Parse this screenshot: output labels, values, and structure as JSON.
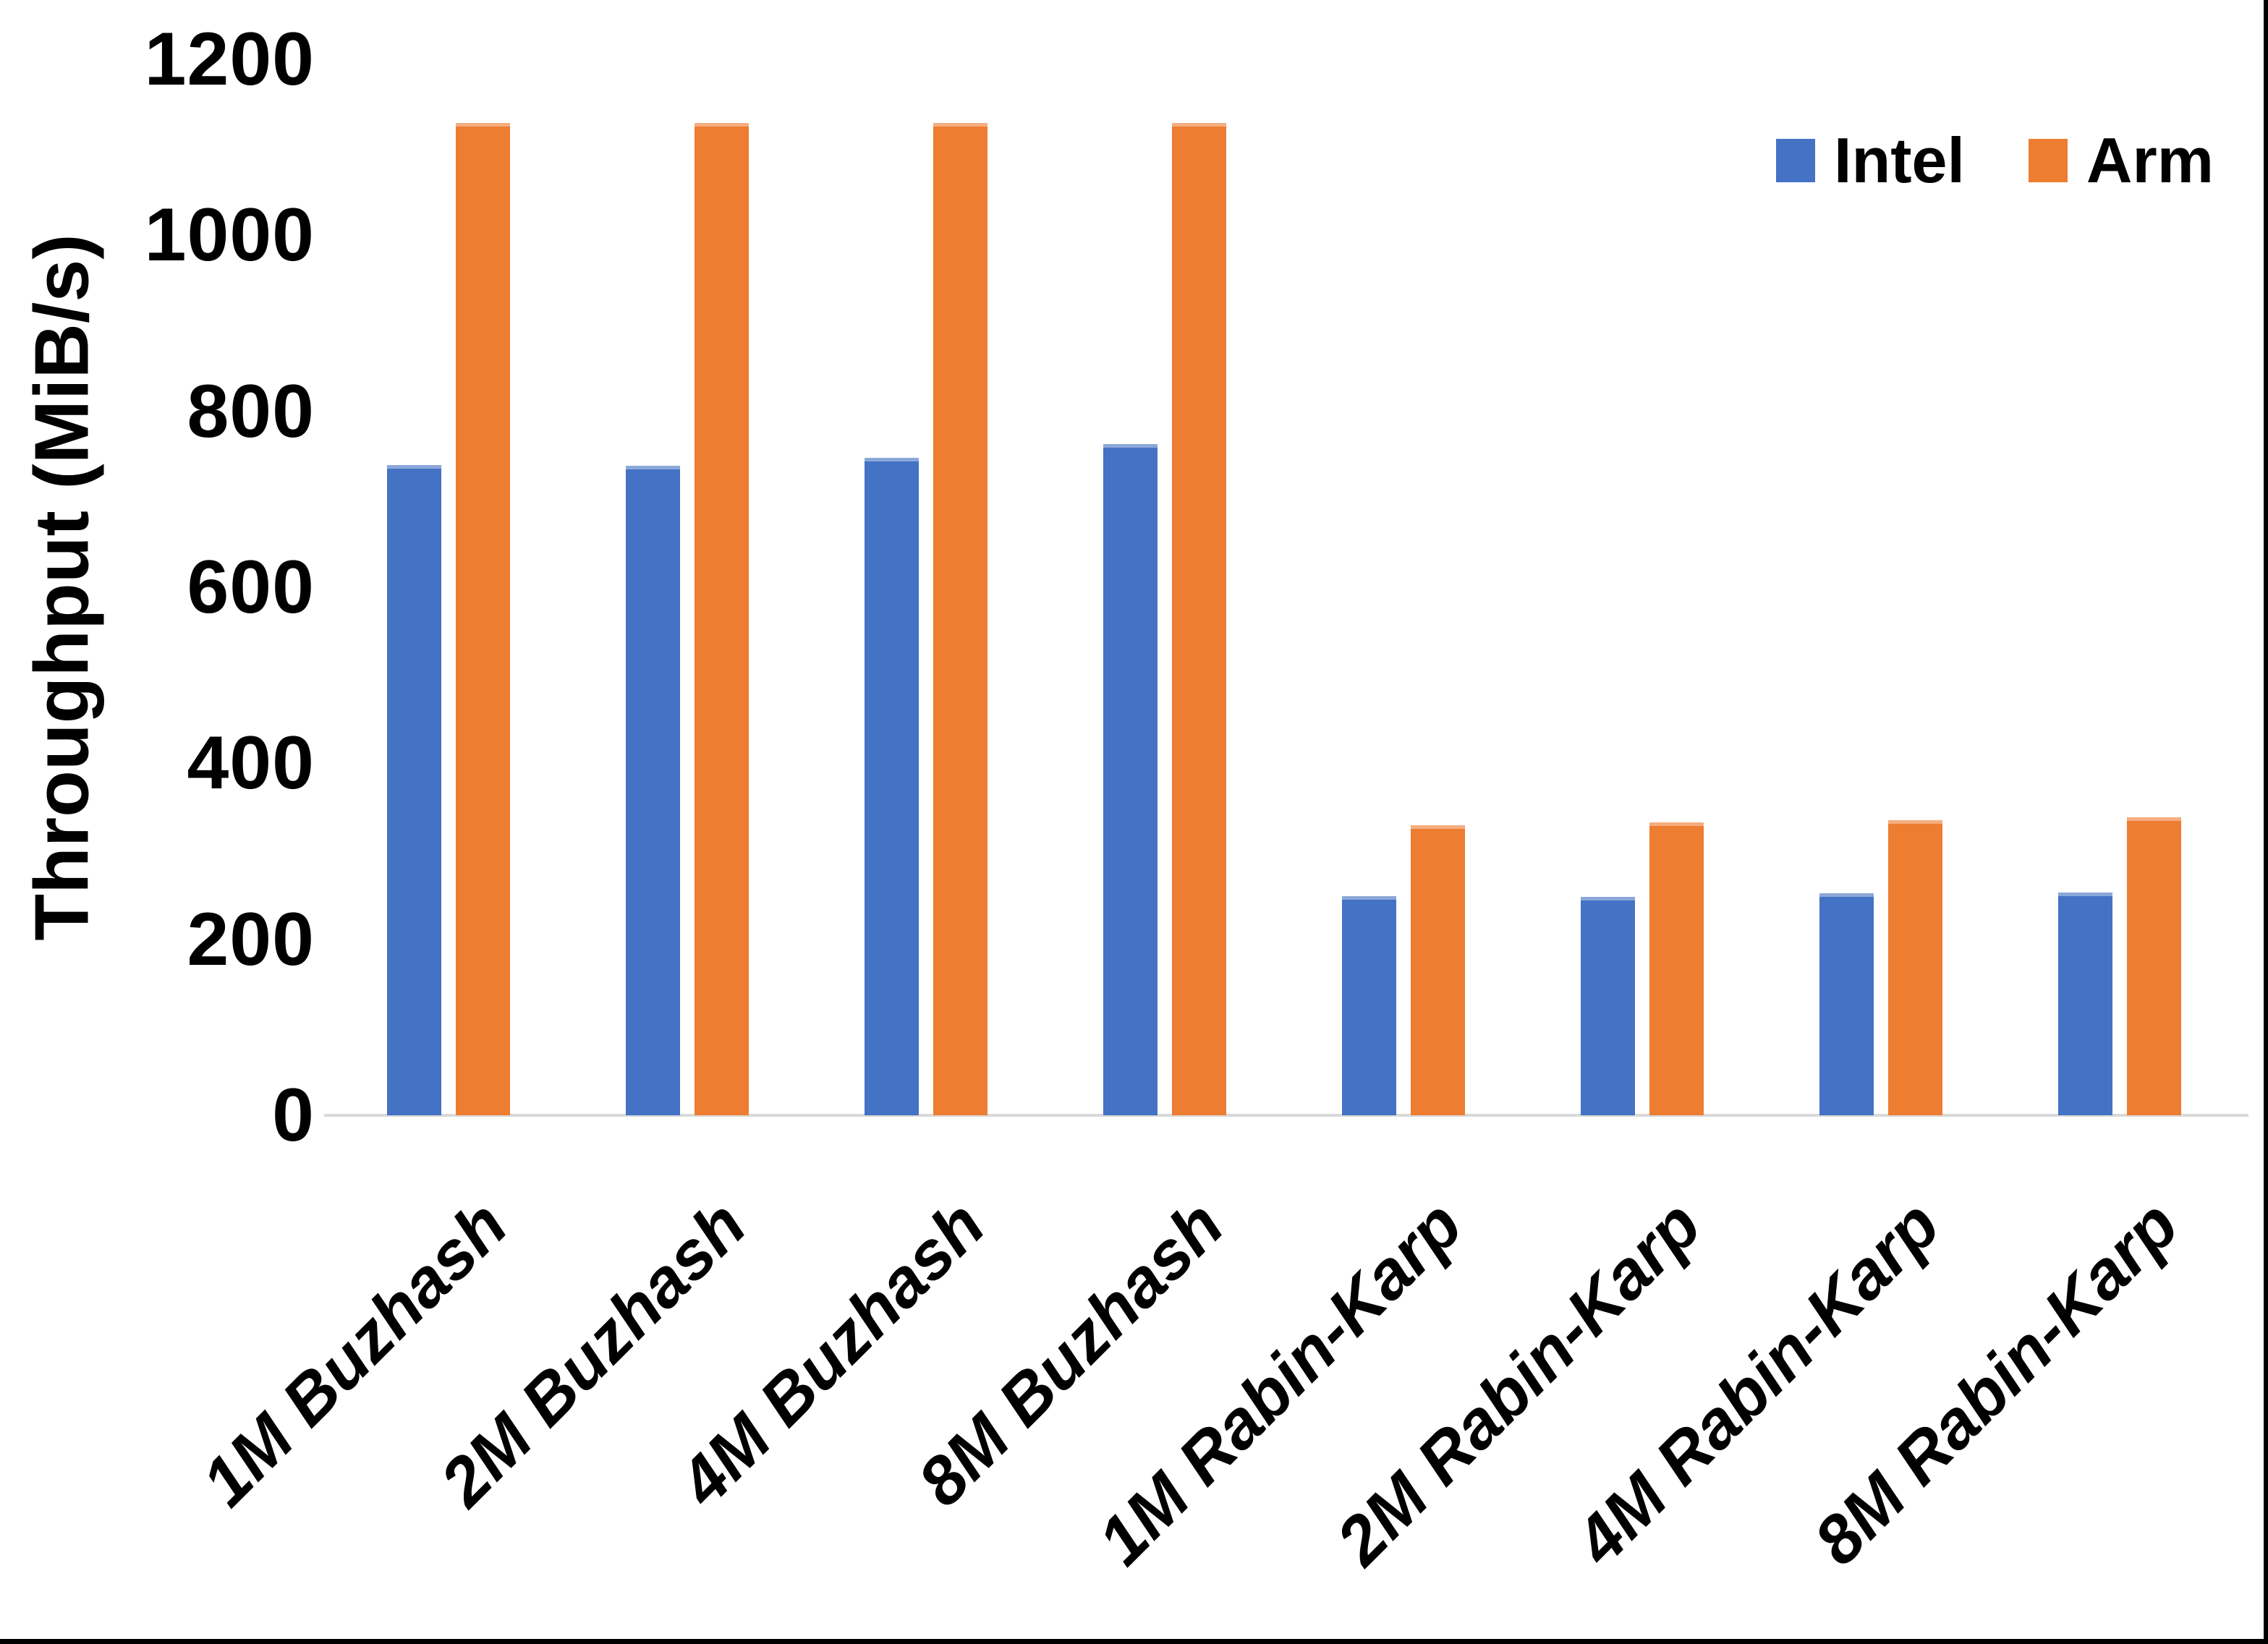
{
  "colors": {
    "background": "#ffffff",
    "border": "#000000",
    "axis_line": "#D9D9D9",
    "text": "#000000"
  },
  "chart_data": {
    "type": "bar",
    "title": "",
    "xlabel": "",
    "ylabel": "Throughput (MiB/s)",
    "ylim": [
      0,
      1200
    ],
    "yticks": [
      0,
      200,
      400,
      600,
      800,
      1000,
      1200
    ],
    "grid": false,
    "legend_position": "top-right",
    "categories": [
      "1M Buzhash",
      "2M Buzhash",
      "4M Buzhash",
      "8M Buzhash",
      "1M Rabin-Karp",
      "2M Rabin-Karp",
      "4M Rabin-Karp",
      "8M Rabin-Karp"
    ],
    "series": [
      {
        "name": "Intel",
        "color": "#4472C4",
        "values": [
          739,
          738,
          747,
          763,
          249,
          248,
          252,
          253
        ]
      },
      {
        "name": "Arm",
        "color": "#ED7D31",
        "values": [
          1128,
          1128,
          1128,
          1128,
          330,
          333,
          335,
          339
        ]
      }
    ]
  }
}
